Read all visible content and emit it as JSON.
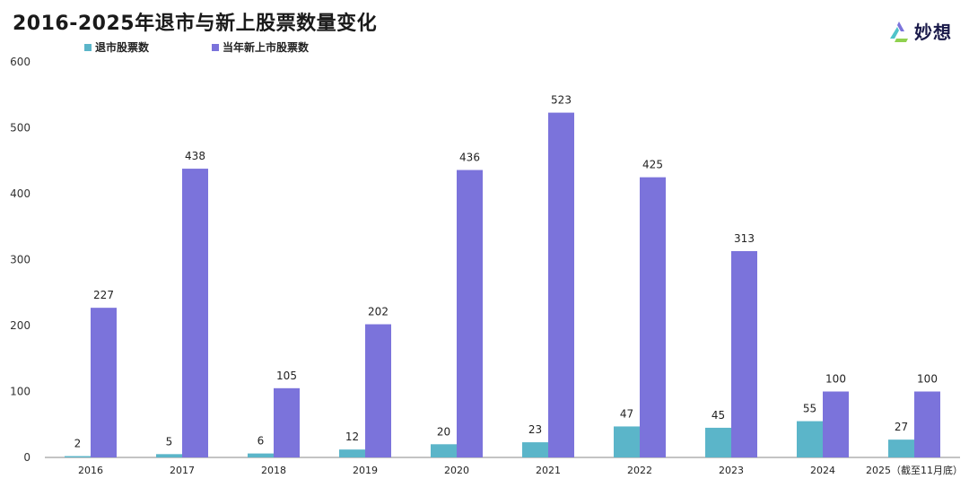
{
  "header": {
    "title": "2016-2025年退市与新上股票数量变化"
  },
  "logo": {
    "text": "妙想"
  },
  "colors": {
    "delisted": "#5bb5c9",
    "listed": "#7b73db",
    "axis": "#888888"
  },
  "chart_data": {
    "type": "bar",
    "title": "2016-2025年退市与新上股票数量变化",
    "categories": [
      "2016",
      "2017",
      "2018",
      "2019",
      "2020",
      "2021",
      "2022",
      "2023",
      "2024",
      "2025（截至11月底）"
    ],
    "series": [
      {
        "name": "退市股票数",
        "values": [
          2,
          5,
          6,
          12,
          20,
          23,
          47,
          45,
          55,
          27
        ]
      },
      {
        "name": "当年新上市股票数",
        "values": [
          227,
          438,
          105,
          202,
          436,
          523,
          425,
          313,
          100,
          100
        ]
      }
    ],
    "yticks": [
      "0",
      "100",
      "200",
      "300",
      "400",
      "500",
      "600"
    ],
    "ylim": [
      0,
      600
    ],
    "legend_position": "top-left",
    "grid": false
  }
}
